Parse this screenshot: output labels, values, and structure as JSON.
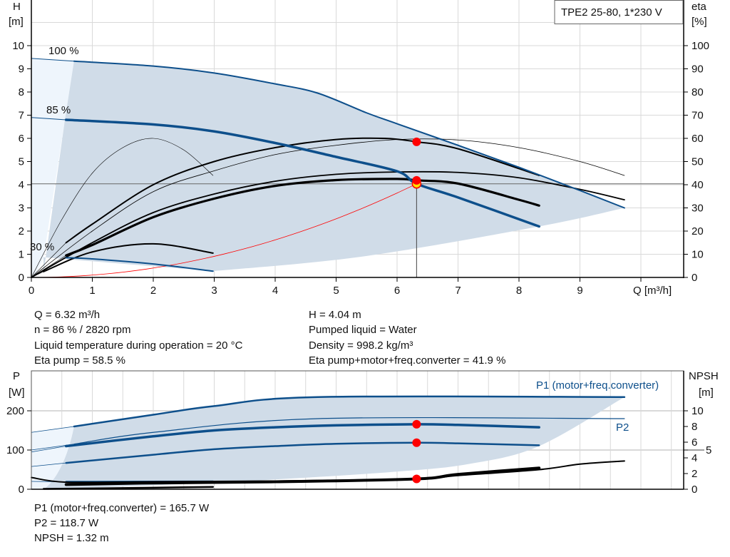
{
  "title_box": "TPE2 25-80, 1*230 V",
  "colors": {
    "shade": "#d0dce8",
    "shade_light": "#eef5fc",
    "blue": "#0d4f8b",
    "black": "#000000",
    "red": "#ff0000",
    "dot_yellow": "#ffe000",
    "grid": "#d9d9d9"
  },
  "info_top": {
    "left": [
      "Q = 6.32 m³/h",
      "n = 86 % / 2820 rpm",
      "Liquid temperature during operation = 20 °C",
      "Eta pump = 58.5 %"
    ],
    "right": [
      "H = 4.04 m",
      "Pumped liquid = Water",
      "Density = 998.2 kg/m³",
      "Eta pump+motor+freq.converter = 41.9 %"
    ]
  },
  "info_bottom": [
    "P1 (motor+freq.converter) = 165.7 W",
    "P2 = 118.7 W",
    "NPSH = 1.32 m"
  ],
  "chart_data": [
    {
      "type": "line",
      "title": "TPE2 25-80, 1*230 V",
      "xlabel": "Q [m³/h]",
      "ylabel": "H\n[m]",
      "ylabel_unit_left": "[m]",
      "ylabel_name_left": "H",
      "ylabel_name_right": "eta",
      "ylabel_unit_right": "[%]",
      "x_ticks": [
        "0",
        "1",
        "2",
        "3",
        "4",
        "5",
        "6",
        "7",
        "8",
        "9"
      ],
      "y_ticks_left": [
        "0",
        "1",
        "2",
        "3",
        "4",
        "5",
        "6",
        "7",
        "8",
        "9",
        "10"
      ],
      "y_ticks_right": [
        "0",
        "10",
        "20",
        "30",
        "40",
        "50",
        "60",
        "70",
        "80",
        "90",
        "100"
      ],
      "xlim": [
        0,
        10.7
      ],
      "ylim_left": [
        0,
        12
      ],
      "ylim_right": [
        0,
        120
      ],
      "grid": true,
      "curve_labels": [
        "100 %",
        "85 %",
        "30 %"
      ],
      "speed_curves_H": [
        {
          "id": "h100",
          "points": [
            [
              0,
              9.45
            ],
            [
              0.7,
              9.33
            ],
            [
              2,
              9.12
            ],
            [
              3,
              8.82
            ],
            [
              4,
              8.35
            ],
            [
              4.7,
              7.95
            ],
            [
              5.5,
              7.1
            ],
            [
              6,
              6.63
            ],
            [
              7,
              5.7
            ],
            [
              8,
              4.75
            ],
            [
              9,
              3.75
            ],
            [
              9.73,
              3.0
            ]
          ]
        },
        {
          "id": "h85",
          "points": [
            [
              0,
              6.9
            ],
            [
              0.57,
              6.8
            ],
            [
              2,
              6.6
            ],
            [
              3,
              6.3
            ],
            [
              4,
              5.8
            ],
            [
              5,
              5.2
            ],
            [
              6,
              4.58
            ],
            [
              6.32,
              4.04
            ],
            [
              7,
              3.45
            ],
            [
              8.33,
              2.2
            ]
          ]
        },
        {
          "id": "h30",
          "points": [
            [
              0,
              0.87
            ],
            [
              0.57,
              0.85
            ],
            [
              1,
              0.8
            ],
            [
              2,
              0.58
            ],
            [
              2.98,
              0.27
            ]
          ]
        }
      ],
      "eta_curves": [
        {
          "id": "eta_pump_max",
          "points": [
            [
              0,
              0
            ],
            [
              1,
              20
            ],
            [
              2,
              37
            ],
            [
              3,
              46
            ],
            [
              4,
              53
            ],
            [
              5,
              57
            ],
            [
              6,
              59.5
            ],
            [
              7,
              59.3
            ],
            [
              8,
              56
            ],
            [
              9,
              50
            ],
            [
              9.73,
              44
            ]
          ]
        },
        {
          "id": "eta_pump",
          "points": [
            [
              0.57,
              15
            ],
            [
              1,
              23
            ],
            [
              2,
              40
            ],
            [
              3,
              50
            ],
            [
              4,
              56
            ],
            [
              5,
              59.5
            ],
            [
              5.8,
              60
            ],
            [
              6.32,
              58.5
            ],
            [
              7,
              55.5
            ],
            [
              8.33,
              44
            ]
          ]
        },
        {
          "id": "eta_total_max",
          "points": [
            [
              0,
              0
            ],
            [
              1,
              15
            ],
            [
              2,
              28
            ],
            [
              3,
              36
            ],
            [
              4,
              41.5
            ],
            [
              5,
              44.5
            ],
            [
              6,
              45.5
            ],
            [
              7,
              45.3
            ],
            [
              8,
              43
            ],
            [
              9,
              38
            ],
            [
              9.73,
              33.5
            ]
          ]
        },
        {
          "id": "eta_total",
          "points": [
            [
              0.57,
              9.5
            ],
            [
              1,
              14
            ],
            [
              2,
              26
            ],
            [
              3,
              34
            ],
            [
              4,
              39.5
            ],
            [
              5,
              42
            ],
            [
              6,
              42.5
            ],
            [
              6.32,
              41.9
            ],
            [
              7,
              40.5
            ],
            [
              8,
              33.5
            ],
            [
              8.33,
              31
            ]
          ]
        },
        {
          "id": "eta_30",
          "points": [
            [
              0.2,
              2.5
            ],
            [
              1,
              11
            ],
            [
              2,
              14.5
            ],
            [
              2.98,
              10.5
            ]
          ]
        },
        {
          "id": "eta_arc",
          "points": [
            [
              0,
              0
            ],
            [
              0.5,
              25
            ],
            [
              1,
              45
            ],
            [
              1.5,
              56
            ],
            [
              2,
              60
            ],
            [
              2.5,
              55
            ],
            [
              2.98,
              44
            ]
          ]
        }
      ],
      "system_curve": {
        "Q": 6.32,
        "H": 4.04
      },
      "operating_point": {
        "Q": 6.32,
        "H": 4.04,
        "eta_pump": 58.5,
        "eta_total": 41.9
      },
      "range_lower_boundary": [
        [
          2.98,
          0.27
        ],
        [
          5.43,
          0.9
        ],
        [
          8.33,
          2.2
        ],
        [
          9.73,
          3.0
        ]
      ]
    },
    {
      "type": "line",
      "ylabel_name_left": "P",
      "ylabel_unit_left": "[W]",
      "ylabel_name_right": "NPSH",
      "ylabel_unit_right": "[m]",
      "y_ticks_left": [
        "0",
        "100",
        "200"
      ],
      "y_ticks_right": [
        "0",
        "2",
        "4",
        "5",
        "6",
        "8",
        "10"
      ],
      "ylim_left": [
        0,
        300
      ],
      "ylim_right": [
        0,
        15
      ],
      "legend": [
        "P1 (motor+freq.converter)",
        "P2"
      ],
      "power_curves": [
        {
          "id": "p1_max",
          "points": [
            [
              0,
              145
            ],
            [
              0.7,
              160
            ],
            [
              2,
              190
            ],
            [
              3,
              212
            ],
            [
              4.7,
              235
            ],
            [
              9.73,
              235
            ]
          ]
        },
        {
          "id": "p2_max",
          "points": [
            [
              0,
              100
            ],
            [
              0.7,
              115
            ],
            [
              2,
              145
            ],
            [
              4.7,
              180
            ],
            [
              9.73,
              180
            ]
          ]
        },
        {
          "id": "p1_85",
          "points": [
            [
              0,
              95
            ],
            [
              0.57,
              110
            ],
            [
              2,
              135
            ],
            [
              3,
              150
            ],
            [
              4,
              158
            ],
            [
              5,
              163
            ],
            [
              6.32,
              165.7
            ],
            [
              7,
              164
            ],
            [
              8.33,
              158
            ]
          ]
        },
        {
          "id": "p2_85",
          "points": [
            [
              0,
              58
            ],
            [
              0.57,
              67
            ],
            [
              2,
              88
            ],
            [
              3,
              102
            ],
            [
              4,
              110
            ],
            [
              5,
              116
            ],
            [
              6.32,
              118.7
            ],
            [
              7,
              117
            ],
            [
              8.33,
              112
            ]
          ]
        },
        {
          "id": "p1_30",
          "points": [
            [
              0,
              20
            ],
            [
              0.57,
              19
            ],
            [
              2.98,
              20
            ]
          ]
        }
      ],
      "npsh_curves": [
        {
          "id": "npsh_max",
          "points": [
            [
              0,
              1.5
            ],
            [
              0.57,
              0.9
            ],
            [
              2,
              0.95
            ],
            [
              4,
              1.05
            ],
            [
              6.32,
              1.32
            ],
            [
              7,
              1.75
            ],
            [
              8.33,
              2.5
            ],
            [
              9,
              3.2
            ],
            [
              9.73,
              3.6
            ]
          ]
        },
        {
          "id": "npsh_85",
          "points": [
            [
              0.57,
              0.6
            ],
            [
              2,
              0.8
            ],
            [
              4,
              0.95
            ],
            [
              6.32,
              1.32
            ],
            [
              7,
              1.9
            ],
            [
              8.33,
              2.7
            ]
          ]
        },
        {
          "id": "npsh_30",
          "points": [
            [
              0.2,
              0.05
            ],
            [
              1,
              0.1
            ],
            [
              2.98,
              0.3
            ]
          ]
        }
      ],
      "operating_point": {
        "Q": 6.32,
        "P1": 165.7,
        "P2": 118.7,
        "NPSH": 1.32
      },
      "range_lower_boundary": [
        [
          0.2,
          0
        ],
        [
          2,
          10
        ],
        [
          4,
          25
        ],
        [
          6,
          45
        ],
        [
          7.2,
          65
        ],
        [
          8.33,
          110
        ],
        [
          9.73,
          235
        ]
      ]
    }
  ]
}
